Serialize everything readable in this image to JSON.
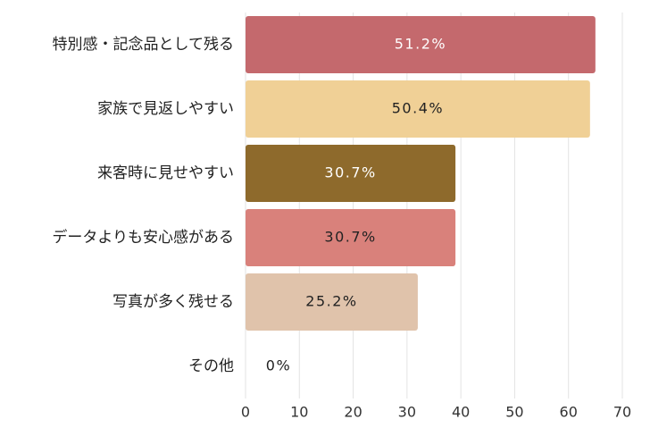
{
  "chart_data": {
    "type": "bar",
    "orientation": "horizontal",
    "categories": [
      "特別感・記念品として残る",
      "家族で見返しやすい",
      "来客時に見せやすい",
      "データよりも安心感がある",
      "写真が多く残せる",
      "その他"
    ],
    "values": [
      65,
      64,
      39,
      39,
      32,
      0
    ],
    "value_labels": [
      "51.2%",
      "50.4%",
      "30.7%",
      "30.7%",
      "25.2%",
      "0%"
    ],
    "colors": [
      "#c4696d",
      "#f0d096",
      "#8e6a2c",
      "#d9817b",
      "#e0c3ab",
      "#cccccc"
    ],
    "xlim": [
      0,
      70
    ],
    "xticks": [
      0,
      10,
      20,
      30,
      40,
      50,
      60,
      70
    ],
    "grid": true
  }
}
